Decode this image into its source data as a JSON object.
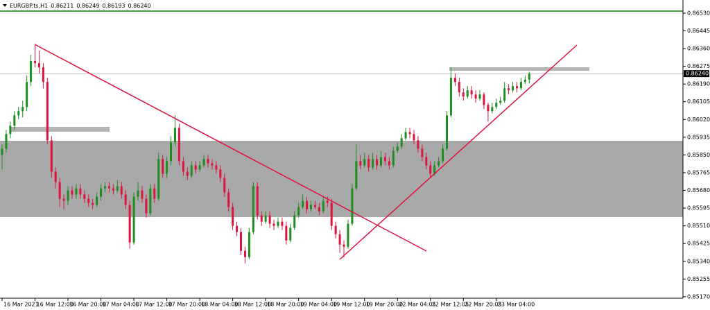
{
  "chart_data": {
    "type": "candlestick",
    "legend": {
      "symbol": "EURGBP.ts,H1",
      "quote": [
        "0.86211",
        "0.86249",
        "0.86193",
        "0.86240"
      ]
    },
    "price_label": "0.86240",
    "up_color": "#1e8c1e",
    "down_color": "#dc143c",
    "ylim": [
      0.85163,
      0.86593
    ],
    "yticks": [
      {
        "value": 0.8653,
        "label": "0.86530"
      },
      0.86445,
      {
        "value": 0.8636,
        "label": "0.86360"
      },
      0.86275,
      {
        "value": 0.8619,
        "label": "0.86190"
      },
      0.86105,
      {
        "value": 0.8602,
        "label": "0.86020"
      },
      0.85935,
      {
        "value": 0.8585,
        "label": "0.85850"
      },
      0.85765,
      {
        "value": 0.8568,
        "label": "0.85680"
      },
      0.85595,
      {
        "value": 0.8551,
        "label": "0.85510"
      },
      0.85425,
      {
        "value": 0.8534,
        "label": "0.85340"
      },
      0.85255,
      {
        "value": 0.8517,
        "label": "0.85170"
      }
    ],
    "xticks": [
      {
        "value": 0,
        "label": "16 Mar 2021"
      },
      {
        "value": 8,
        "label": "16 Mar 12:00"
      },
      {
        "value": 16,
        "label": "16 Mar 20:00"
      },
      {
        "value": 24,
        "label": "17 Mar 04:00"
      },
      {
        "value": 32,
        "label": "17 Mar 12:00"
      },
      {
        "value": 40,
        "label": "17 Mar 20:00"
      },
      {
        "value": 48,
        "label": "18 Mar 04:00"
      },
      {
        "value": 56,
        "label": "18 Mar 12:00"
      },
      {
        "value": 64,
        "label": "18 Mar 20:00"
      },
      {
        "value": 72,
        "label": "19 Mar 04:00"
      },
      {
        "value": 80,
        "label": "19 Mar 12:00"
      },
      {
        "value": 88,
        "label": "19 Mar 20:00"
      },
      {
        "value": 96,
        "label": "22 Mar 04:05"
      },
      {
        "value": 104,
        "label": "22 Mar 12:05"
      },
      {
        "value": 112,
        "label": "22 Mar 20:05"
      },
      {
        "value": 120,
        "label": "23 Mar 04:00"
      }
    ],
    "ohlc": [
      [
        0.8585,
        0.859,
        0.8578,
        0.8588
      ],
      [
        0.8588,
        0.8597,
        0.8586,
        0.8595
      ],
      [
        0.8595,
        0.8601,
        0.8593,
        0.8599
      ],
      [
        0.8599,
        0.8606,
        0.8597,
        0.8604
      ],
      [
        0.8604,
        0.8608,
        0.8602,
        0.8606
      ],
      [
        0.8606,
        0.8611,
        0.8603,
        0.8608
      ],
      [
        0.8608,
        0.8623,
        0.8606,
        0.862
      ],
      [
        0.862,
        0.8633,
        0.8618,
        0.863
      ],
      [
        0.863,
        0.86377,
        0.8627,
        0.8629
      ],
      [
        0.8629,
        0.8635,
        0.8624,
        0.8627
      ],
      [
        0.8627,
        0.8629,
        0.8617,
        0.862
      ],
      [
        0.862,
        0.8622,
        0.859,
        0.8592
      ],
      [
        0.8592,
        0.8594,
        0.8574,
        0.8577
      ],
      [
        0.8577,
        0.8579,
        0.8569,
        0.8572
      ],
      [
        0.8572,
        0.8574,
        0.856,
        0.8564
      ],
      [
        0.8564,
        0.8566,
        0.8559,
        0.8563
      ],
      [
        0.8563,
        0.857,
        0.8561,
        0.8568
      ],
      [
        0.8568,
        0.857,
        0.8564,
        0.8566
      ],
      [
        0.8566,
        0.8571,
        0.8564,
        0.8569
      ],
      [
        0.8569,
        0.8571,
        0.8564,
        0.8566
      ],
      [
        0.8566,
        0.8568,
        0.8562,
        0.8564
      ],
      [
        0.8564,
        0.8566,
        0.856,
        0.8562
      ],
      [
        0.8562,
        0.8564,
        0.8559,
        0.8561
      ],
      [
        0.8561,
        0.8567,
        0.856,
        0.8565
      ],
      [
        0.8565,
        0.8571,
        0.8563,
        0.8569
      ],
      [
        0.8569,
        0.8572,
        0.8567,
        0.857
      ],
      [
        0.857,
        0.8572,
        0.8567,
        0.8569
      ],
      [
        0.8569,
        0.8571,
        0.8566,
        0.8568
      ],
      [
        0.8568,
        0.8573,
        0.8567,
        0.857
      ],
      [
        0.857,
        0.8572,
        0.8564,
        0.8566
      ],
      [
        0.8566,
        0.8568,
        0.8559,
        0.8561
      ],
      [
        0.8561,
        0.8563,
        0.854,
        0.8543
      ],
      [
        0.8543,
        0.8567,
        0.8542,
        0.8565
      ],
      [
        0.8565,
        0.8572,
        0.8563,
        0.8568
      ],
      [
        0.8568,
        0.857,
        0.8562,
        0.8564
      ],
      [
        0.8564,
        0.8566,
        0.8555,
        0.8557
      ],
      [
        0.8557,
        0.8571,
        0.8556,
        0.8569
      ],
      [
        0.8569,
        0.8571,
        0.8562,
        0.8564
      ],
      [
        0.8564,
        0.8586,
        0.8563,
        0.8583
      ],
      [
        0.8583,
        0.8585,
        0.8574,
        0.8576
      ],
      [
        0.8576,
        0.8584,
        0.8574,
        0.8582
      ],
      [
        0.8582,
        0.8594,
        0.858,
        0.8591
      ],
      [
        0.8591,
        0.8604,
        0.8589,
        0.8598
      ],
      [
        0.8598,
        0.86,
        0.858,
        0.8582
      ],
      [
        0.8582,
        0.8584,
        0.8575,
        0.8577
      ],
      [
        0.8577,
        0.8579,
        0.8573,
        0.8575
      ],
      [
        0.8575,
        0.8582,
        0.8574,
        0.858
      ],
      [
        0.858,
        0.8582,
        0.8576,
        0.8578
      ],
      [
        0.8578,
        0.8582,
        0.8577,
        0.858
      ],
      [
        0.858,
        0.8585,
        0.8579,
        0.8583
      ],
      [
        0.8583,
        0.8585,
        0.8579,
        0.8581
      ],
      [
        0.8581,
        0.8583,
        0.8578,
        0.858
      ],
      [
        0.858,
        0.8582,
        0.8576,
        0.8578
      ],
      [
        0.8578,
        0.858,
        0.8572,
        0.8574
      ],
      [
        0.8574,
        0.8576,
        0.8565,
        0.8567
      ],
      [
        0.8567,
        0.8569,
        0.8558,
        0.856
      ],
      [
        0.856,
        0.8562,
        0.8549,
        0.8551
      ],
      [
        0.8551,
        0.8553,
        0.8546,
        0.8548
      ],
      [
        0.8548,
        0.855,
        0.8537,
        0.8539
      ],
      [
        0.8539,
        0.8541,
        0.8533,
        0.8536
      ],
      [
        0.8536,
        0.855,
        0.8535,
        0.8548
      ],
      [
        0.8548,
        0.8572,
        0.8547,
        0.857
      ],
      [
        0.857,
        0.8572,
        0.8554,
        0.8556
      ],
      [
        0.8556,
        0.8558,
        0.8551,
        0.8553
      ],
      [
        0.8553,
        0.8558,
        0.8552,
        0.8556
      ],
      [
        0.8556,
        0.8558,
        0.855,
        0.8552
      ],
      [
        0.8552,
        0.8554,
        0.8549,
        0.8551
      ],
      [
        0.8551,
        0.8555,
        0.855,
        0.8553
      ],
      [
        0.8553,
        0.8555,
        0.8549,
        0.8551
      ],
      [
        0.8551,
        0.8553,
        0.8542,
        0.8544
      ],
      [
        0.8544,
        0.8552,
        0.8543,
        0.855
      ],
      [
        0.855,
        0.8558,
        0.8549,
        0.8556
      ],
      [
        0.8556,
        0.8562,
        0.8555,
        0.856
      ],
      [
        0.856,
        0.8566,
        0.8559,
        0.8563
      ],
      [
        0.8563,
        0.8565,
        0.8557,
        0.8559
      ],
      [
        0.8559,
        0.8563,
        0.8558,
        0.8561
      ],
      [
        0.8561,
        0.8563,
        0.8559,
        0.856
      ],
      [
        0.856,
        0.8562,
        0.8556,
        0.8558
      ],
      [
        0.8558,
        0.8565,
        0.8557,
        0.8563
      ],
      [
        0.8563,
        0.8565,
        0.856,
        0.8562
      ],
      [
        0.8562,
        0.8564,
        0.8549,
        0.8551
      ],
      [
        0.8551,
        0.8553,
        0.8545,
        0.8547
      ],
      [
        0.8547,
        0.8549,
        0.8538,
        0.8542
      ],
      [
        0.8542,
        0.8544,
        0.8536,
        0.8541
      ],
      [
        0.8541,
        0.8554,
        0.854,
        0.8552
      ],
      [
        0.8552,
        0.8571,
        0.8551,
        0.8569
      ],
      [
        0.8569,
        0.859,
        0.8568,
        0.8582
      ],
      [
        0.8582,
        0.8585,
        0.8578,
        0.858
      ],
      [
        0.858,
        0.8586,
        0.8579,
        0.8583
      ],
      [
        0.8583,
        0.8585,
        0.8577,
        0.8579
      ],
      [
        0.8579,
        0.8586,
        0.8578,
        0.8583
      ],
      [
        0.8583,
        0.8585,
        0.8578,
        0.858
      ],
      [
        0.858,
        0.8587,
        0.8579,
        0.8584
      ],
      [
        0.8584,
        0.8586,
        0.858,
        0.8582
      ],
      [
        0.8582,
        0.8584,
        0.8578,
        0.858
      ],
      [
        0.858,
        0.8589,
        0.8579,
        0.8587
      ],
      [
        0.8587,
        0.8591,
        0.8586,
        0.8589
      ],
      [
        0.8589,
        0.8595,
        0.8588,
        0.8593
      ],
      [
        0.8593,
        0.8598,
        0.8592,
        0.8596
      ],
      [
        0.8596,
        0.8598,
        0.8593,
        0.8595
      ],
      [
        0.8595,
        0.8597,
        0.859,
        0.8592
      ],
      [
        0.8592,
        0.8594,
        0.8586,
        0.8588
      ],
      [
        0.8588,
        0.859,
        0.8582,
        0.8584
      ],
      [
        0.8584,
        0.8586,
        0.8578,
        0.858
      ],
      [
        0.858,
        0.8582,
        0.8574,
        0.8576
      ],
      [
        0.8576,
        0.8582,
        0.8575,
        0.858
      ],
      [
        0.858,
        0.8584,
        0.8579,
        0.8582
      ],
      [
        0.8582,
        0.859,
        0.8581,
        0.8588
      ],
      [
        0.8588,
        0.8606,
        0.8587,
        0.8604
      ],
      [
        0.8604,
        0.8627,
        0.8603,
        0.8622
      ],
      [
        0.8622,
        0.8624,
        0.8618,
        0.862
      ],
      [
        0.862,
        0.8622,
        0.8613,
        0.8615
      ],
      [
        0.8615,
        0.8617,
        0.8611,
        0.8613
      ],
      [
        0.8613,
        0.8618,
        0.8612,
        0.8616
      ],
      [
        0.8616,
        0.8618,
        0.8612,
        0.8614
      ],
      [
        0.8614,
        0.8616,
        0.861,
        0.8612
      ],
      [
        0.8612,
        0.8616,
        0.8611,
        0.8614
      ],
      [
        0.8614,
        0.8615,
        0.8607,
        0.8609
      ],
      [
        0.8609,
        0.861,
        0.8601,
        0.8606
      ],
      [
        0.8606,
        0.861,
        0.8605,
        0.8608
      ],
      [
        0.8608,
        0.8612,
        0.8607,
        0.861
      ],
      [
        0.861,
        0.8613,
        0.8609,
        0.8611
      ],
      [
        0.8611,
        0.862,
        0.861,
        0.8617
      ],
      [
        0.8617,
        0.8619,
        0.8614,
        0.8616
      ],
      [
        0.8616,
        0.862,
        0.8615,
        0.8618
      ],
      [
        0.8618,
        0.862,
        0.8615,
        0.8617
      ],
      [
        0.8617,
        0.8622,
        0.8616,
        0.862
      ],
      [
        0.862,
        0.8623,
        0.8619,
        0.86211
      ],
      [
        0.86211,
        0.86249,
        0.86193,
        0.8624
      ]
    ]
  }
}
